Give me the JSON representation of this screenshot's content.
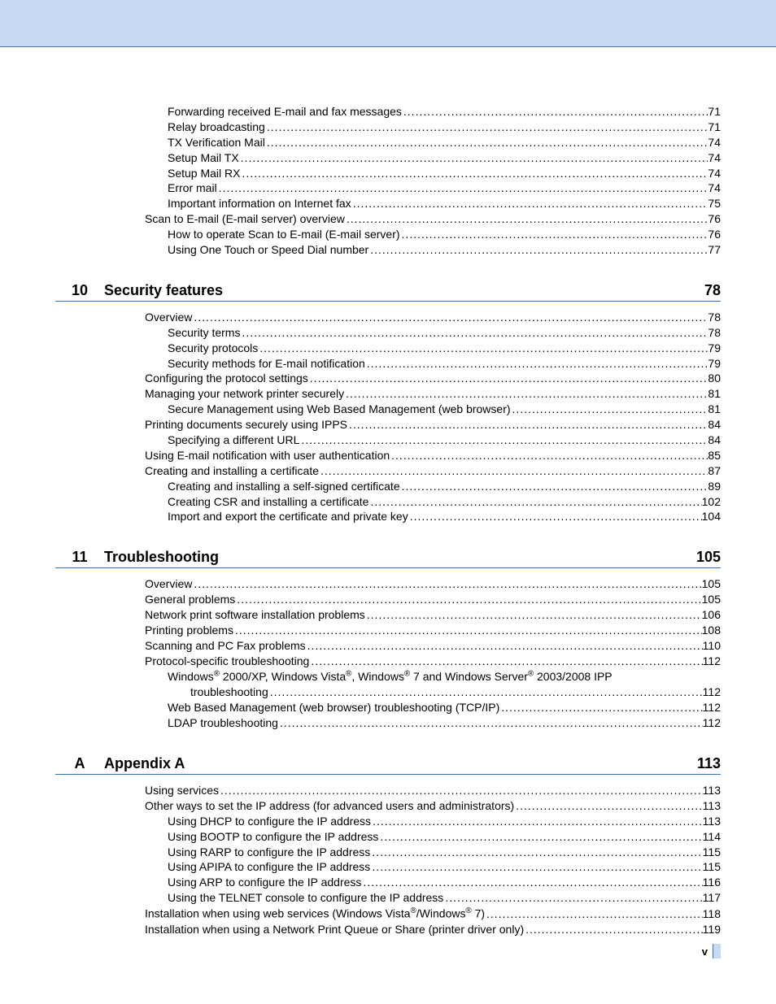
{
  "colors": {
    "band_bg": "#c8d9f2",
    "rule": "#3b6fb6",
    "text": "#000000",
    "page_bg": "#ffffff"
  },
  "typography": {
    "body_family": "Arial, Helvetica, sans-serif",
    "heading_size_pt": 18,
    "entry_size_pt": 14
  },
  "page_number_roman": "v",
  "pre_entries": [
    {
      "level": 2,
      "label": "Forwarding received E-mail and fax messages",
      "page": "71"
    },
    {
      "level": 2,
      "label": "Relay broadcasting",
      "page": "71"
    },
    {
      "level": 2,
      "label": "TX Verification Mail",
      "page": "74"
    },
    {
      "level": 2,
      "label": "Setup Mail TX",
      "page": "74"
    },
    {
      "level": 2,
      "label": "Setup Mail RX",
      "page": "74"
    },
    {
      "level": 2,
      "label": "Error mail",
      "page": "74"
    },
    {
      "level": 2,
      "label": "Important information on Internet fax",
      "page": "75"
    },
    {
      "level": 1,
      "label": "Scan to E-mail (E-mail server) overview",
      "page": "76"
    },
    {
      "level": 2,
      "label": "How to operate Scan to E-mail (E-mail server)",
      "page": "76"
    },
    {
      "level": 2,
      "label": "Using One Touch or Speed Dial number",
      "page": "77"
    }
  ],
  "sections": [
    {
      "num": "10",
      "title": "Security features",
      "page": "78",
      "entries": [
        {
          "level": 1,
          "label": "Overview",
          "page": "78"
        },
        {
          "level": 2,
          "label": "Security terms",
          "page": "78"
        },
        {
          "level": 2,
          "label": "Security protocols",
          "page": "79"
        },
        {
          "level": 2,
          "label": "Security methods for E-mail notification",
          "page": "79"
        },
        {
          "level": 1,
          "label": "Configuring the protocol settings",
          "page": "80"
        },
        {
          "level": 1,
          "label": "Managing your network printer securely",
          "page": "81"
        },
        {
          "level": 2,
          "label": "Secure Management using Web Based Management (web browser)",
          "page": "81"
        },
        {
          "level": 1,
          "label": "Printing documents securely using IPPS",
          "page": "84"
        },
        {
          "level": 2,
          "label": "Specifying a different URL",
          "page": "84"
        },
        {
          "level": 1,
          "label": "Using E-mail notification with user authentication",
          "page": "85"
        },
        {
          "level": 1,
          "label": "Creating and installing a certificate",
          "page": "87"
        },
        {
          "level": 2,
          "label": "Creating and installing a self-signed certificate",
          "page": "89"
        },
        {
          "level": 2,
          "label": "Creating CSR and installing a certificate",
          "page": "102"
        },
        {
          "level": 2,
          "label": "Import and export the certificate and private key",
          "page": "104"
        }
      ]
    },
    {
      "num": "11",
      "title": "Troubleshooting",
      "page": "105",
      "entries": [
        {
          "level": 1,
          "label": "Overview",
          "page": "105"
        },
        {
          "level": 1,
          "label": "General problems",
          "page": "105"
        },
        {
          "level": 1,
          "label": "Network print software installation problems",
          "page": "106"
        },
        {
          "level": 1,
          "label": "Printing problems",
          "page": "108"
        },
        {
          "level": 1,
          "label": "Scanning and PC Fax problems",
          "page": "110"
        },
        {
          "level": 1,
          "label": "Protocol-specific troubleshooting",
          "page": "112"
        },
        {
          "level": 2,
          "wrap": true,
          "label_parts": [
            "Windows",
            "®",
            " 2000/XP, Windows Vista",
            "®",
            ", Windows",
            "®",
            " 7 and Windows Server",
            "®",
            " 2003/2008 IPP"
          ],
          "continuation_label": "troubleshooting",
          "page": "112"
        },
        {
          "level": 2,
          "label": "Web Based Management (web browser) troubleshooting (TCP/IP)",
          "page": "112"
        },
        {
          "level": 2,
          "label": "LDAP troubleshooting",
          "page": "112"
        }
      ]
    },
    {
      "num": "A",
      "title": "Appendix A",
      "page": "113",
      "entries": [
        {
          "level": 1,
          "label": "Using services",
          "page": "113"
        },
        {
          "level": 1,
          "label": "Other ways to set the IP address (for advanced users and administrators)",
          "page": "113"
        },
        {
          "level": 2,
          "label": "Using DHCP to configure the IP address",
          "page": "113"
        },
        {
          "level": 2,
          "label": "Using BOOTP to configure the IP address",
          "page": "114"
        },
        {
          "level": 2,
          "label": "Using RARP to configure the IP address",
          "page": "115"
        },
        {
          "level": 2,
          "label": "Using APIPA to configure the IP address",
          "page": "115"
        },
        {
          "level": 2,
          "label": "Using ARP to configure the IP address",
          "page": "116"
        },
        {
          "level": 2,
          "label": "Using the TELNET console to configure the IP address",
          "page": "117"
        },
        {
          "level": 1,
          "label_parts": [
            "Installation when using web services (Windows Vista",
            "®",
            "/Windows",
            "®",
            " 7)"
          ],
          "page": "118"
        },
        {
          "level": 1,
          "label": "Installation when using a Network Print Queue or Share (printer driver only)",
          "page": "119"
        }
      ]
    }
  ]
}
